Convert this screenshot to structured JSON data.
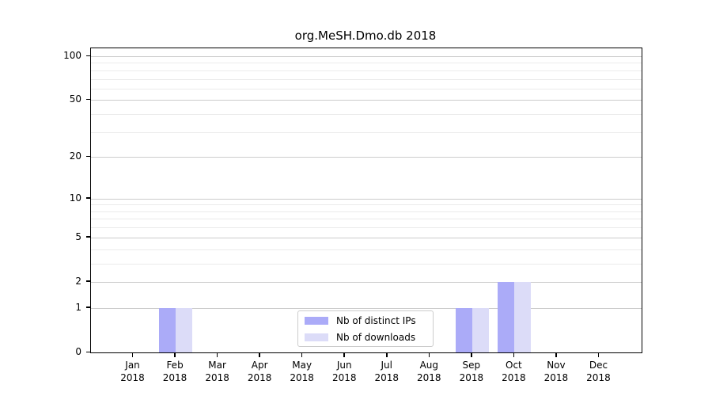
{
  "title": "org.MeSH.Dmo.db 2018",
  "chart_data": {
    "type": "bar",
    "title": "org.MeSH.Dmo.db 2018",
    "categories": [
      "Jan",
      "Feb",
      "Mar",
      "Apr",
      "May",
      "Jun",
      "Jul",
      "Aug",
      "Sep",
      "Oct",
      "Nov",
      "Dec"
    ],
    "year": "2018",
    "series": [
      {
        "name": "Nb of distinct IPs",
        "color": "#ababf8",
        "values": [
          0,
          1,
          0,
          0,
          0,
          0,
          0,
          0,
          1,
          2,
          0,
          0
        ]
      },
      {
        "name": "Nb of downloads",
        "color": "#dcdcf8",
        "values": [
          0,
          1,
          0,
          0,
          0,
          0,
          0,
          0,
          1,
          2,
          0,
          0
        ]
      }
    ],
    "xlabel": "",
    "ylabel": "",
    "y_scale": "log1p",
    "ylim": [
      0,
      113
    ],
    "y_ticks": [
      0,
      1,
      2,
      5,
      10,
      20,
      50,
      100
    ],
    "y_gridlines_minor": [
      3,
      4,
      6,
      7,
      8,
      9,
      30,
      40,
      60,
      70,
      80,
      90
    ],
    "grid": true,
    "legend_position": "lower center"
  },
  "colors": {
    "grid_major": "#cccccc",
    "grid_minor": "#ebebeb",
    "axis": "#000000",
    "legend_border": "#cccccc"
  }
}
